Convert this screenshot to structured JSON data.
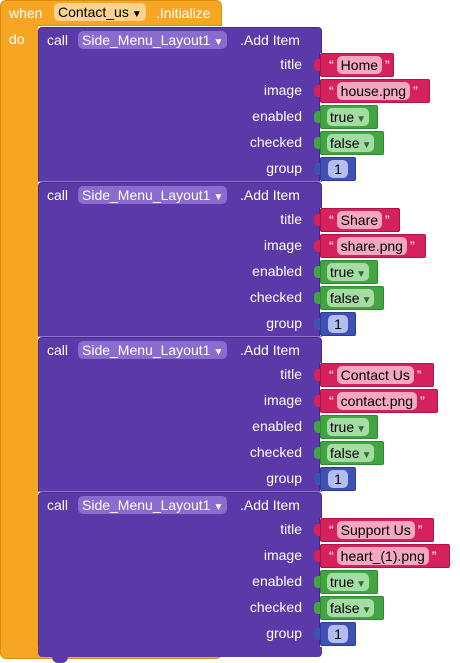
{
  "event": {
    "when_label": "when",
    "component": "Contact_us",
    "event_name": ".Initialize",
    "do_label": "do"
  },
  "call_label": "call",
  "method_label": ".Add Item",
  "param_labels": {
    "title": "title",
    "image": "image",
    "enabled": "enabled",
    "checked": "checked",
    "group": "group"
  },
  "colors": {
    "event": "#f6a623",
    "call": "#5b39a8",
    "string": "#d6215c",
    "boolean": "#42a541",
    "number": "#3f51b5"
  },
  "dropdown_icon": "triangle-down-icon",
  "calls": [
    {
      "component": "Side_Menu_Layout1",
      "title": "Home",
      "image": "house.png",
      "enabled": "true",
      "checked": "false",
      "group": "1"
    },
    {
      "component": "Side_Menu_Layout1",
      "title": "Share",
      "image": "share.png",
      "enabled": "true",
      "checked": "false",
      "group": "1"
    },
    {
      "component": "Side_Menu_Layout1",
      "title": "Contact Us",
      "image": "contact.png",
      "enabled": "true",
      "checked": "false",
      "group": "1"
    },
    {
      "component": "Side_Menu_Layout1",
      "title": "Support Us",
      "image": "heart_(1).png",
      "enabled": "true",
      "checked": "false",
      "group": "1"
    }
  ]
}
